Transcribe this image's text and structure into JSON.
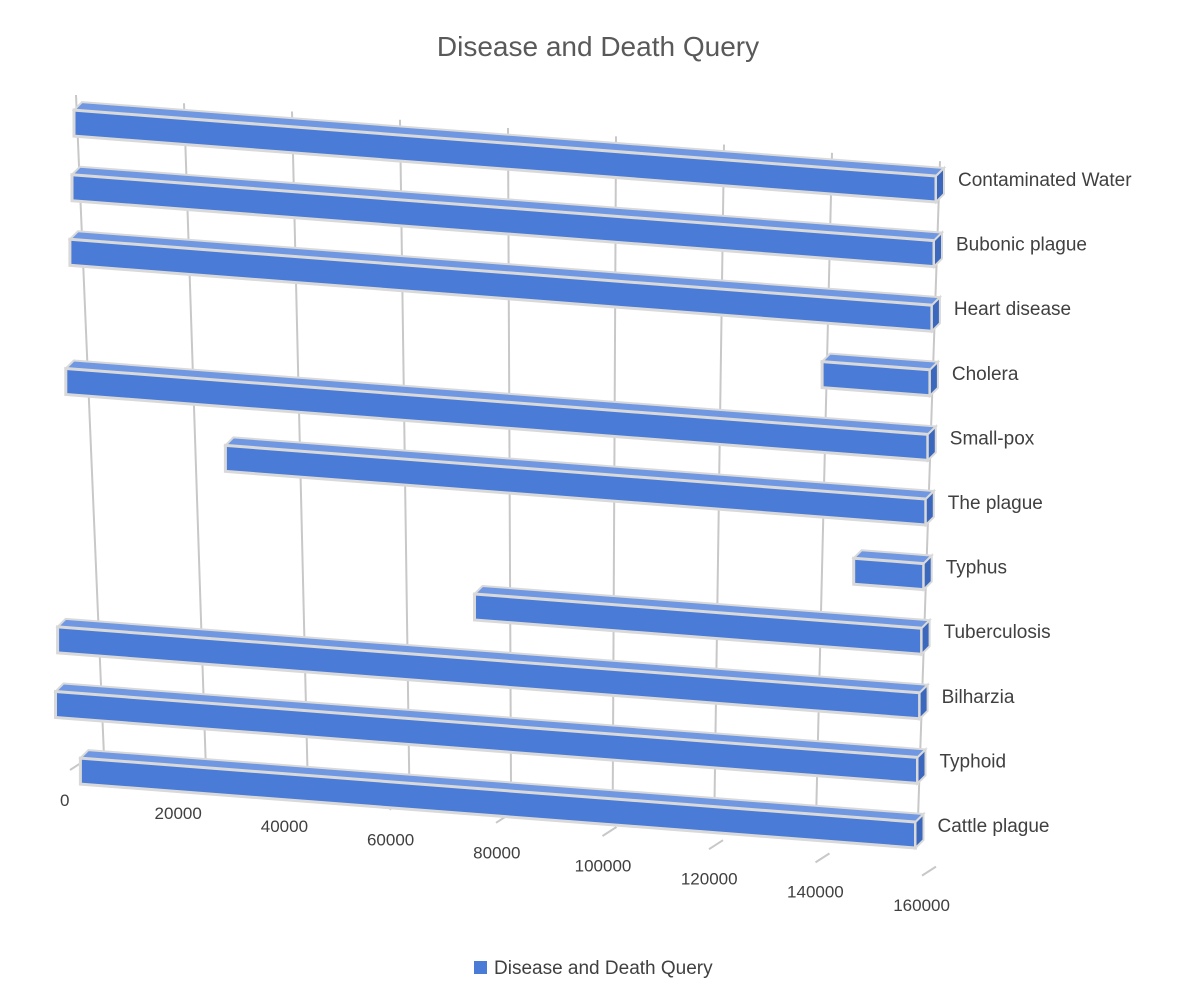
{
  "chart_data": {
    "type": "bar",
    "orientation": "horizontal",
    "style": "3d",
    "title": "Disease and Death Query",
    "categories": [
      "Cattle plague",
      "Typhoid",
      "Bilharzia",
      "Tuberculosis",
      "Typhus",
      "The plague",
      "Small-pox",
      "Cholera",
      "Heart disease",
      "Bubonic plague",
      "Contaminated Water"
    ],
    "series": [
      {
        "name": "Disease and Death Query",
        "values": [
          155000,
          160000,
          160000,
          83000,
          13000,
          130000,
          160000,
          20000,
          160000,
          160000,
          160000
        ]
      }
    ],
    "x_ticks": [
      "0",
      "20000",
      "40000",
      "60000",
      "80000",
      "100000",
      "120000",
      "140000",
      "160000"
    ],
    "xlim": [
      0,
      160000
    ],
    "grid": true,
    "legend_position": "bottom",
    "colors": {
      "bar": "#4a7bd6",
      "bar_top": "#6f97e2",
      "bar_edge": "#d9d9d9",
      "grid": "#c8c8c8"
    }
  }
}
